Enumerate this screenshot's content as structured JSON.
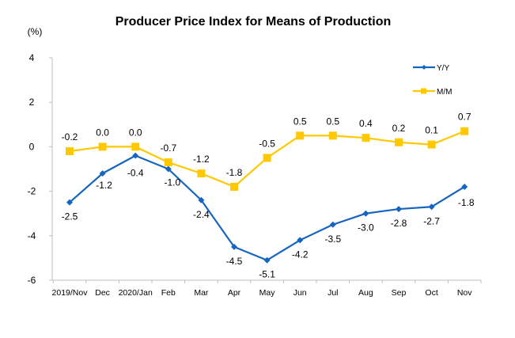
{
  "chart_data": {
    "type": "line",
    "title": "Producer Price Index for Means of Production",
    "ylabel": "(%)",
    "xlabel": "",
    "ylim": [
      -6,
      4
    ],
    "yticks": [
      4,
      2,
      0,
      -2,
      -4,
      -6
    ],
    "grid": false,
    "legend_position": "top-right",
    "categories": [
      "2019/Nov",
      "Dec",
      "2020/Jan",
      "Feb",
      "Mar",
      "Apr",
      "May",
      "Jun",
      "Jul",
      "Aug",
      "Sep",
      "Oct",
      "Nov"
    ],
    "series": [
      {
        "name": "Y/Y",
        "color": "#1565C0",
        "marker": "diamond",
        "values": [
          -2.5,
          -1.2,
          -0.4,
          -1.0,
          -2.4,
          -4.5,
          -5.1,
          -4.2,
          -3.5,
          -3.0,
          -2.8,
          -2.7,
          -1.8
        ],
        "labels": [
          "-2.5",
          "-1.2",
          "-0.4",
          "-1.0",
          "-2.4",
          "-4.5",
          "-5.1",
          "-4.2",
          "-3.5",
          "-3.0",
          "-2.8",
          "-2.7",
          "-1.8"
        ]
      },
      {
        "name": "M/M",
        "color": "#FFC800",
        "marker": "square",
        "values": [
          -0.2,
          0.0,
          0.0,
          -0.7,
          -1.2,
          -1.8,
          -0.5,
          0.5,
          0.5,
          0.4,
          0.2,
          0.1,
          0.7
        ],
        "labels": [
          "-0.2",
          "0.0",
          "0.0",
          "-0.7",
          "-1.2",
          "-1.8",
          "-0.5",
          "0.5",
          "0.5",
          "0.4",
          "0.2",
          "0.1",
          "0.7"
        ]
      }
    ]
  }
}
